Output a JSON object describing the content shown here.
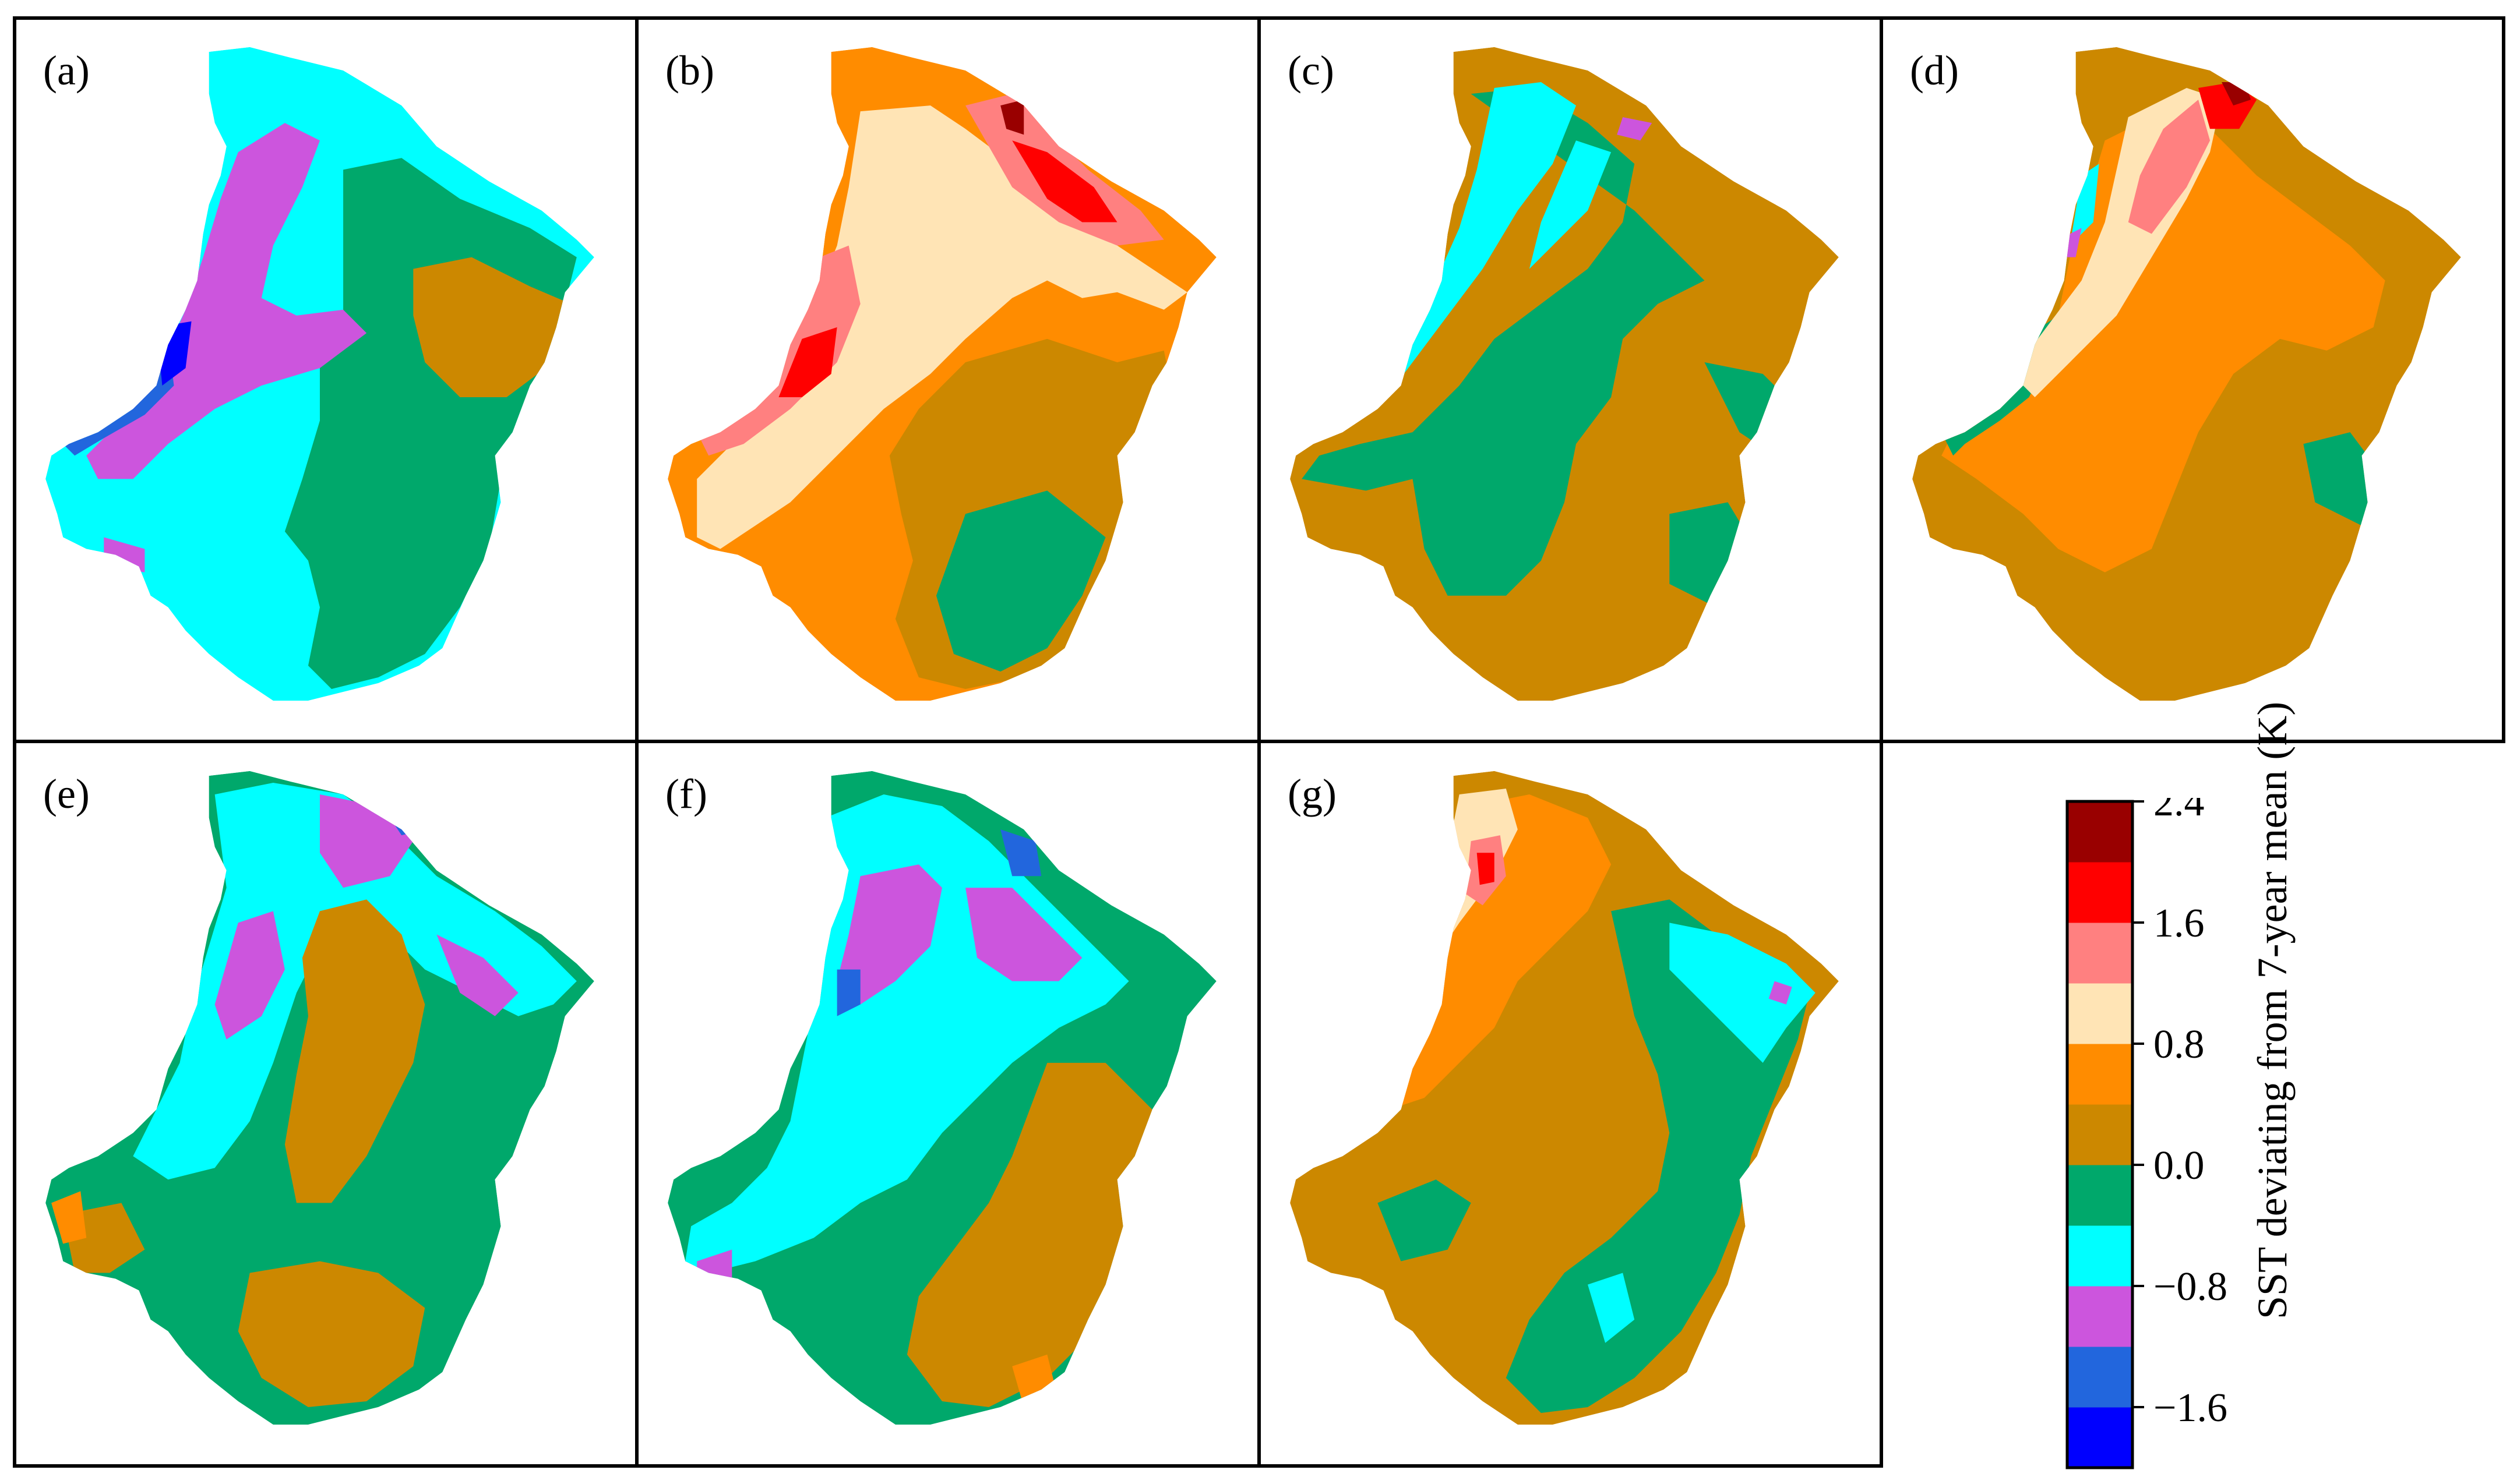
{
  "chart_data": {
    "type": "heatmap",
    "panels": [
      {
        "label": "(a)",
        "regions": [
          "dark-blue",
          "blue",
          "magenta",
          "cyan",
          "green",
          "brown"
        ]
      },
      {
        "label": "(b)",
        "regions": [
          "green",
          "brown",
          "orange",
          "light-orange",
          "light-red",
          "red",
          "dark-red"
        ]
      },
      {
        "label": "(c)",
        "regions": [
          "magenta",
          "cyan",
          "green",
          "brown"
        ]
      },
      {
        "label": "(d)",
        "regions": [
          "cyan",
          "magenta",
          "green",
          "brown",
          "orange",
          "light-orange",
          "light-red",
          "red",
          "dark-red"
        ]
      },
      {
        "label": "(e)",
        "regions": [
          "blue",
          "magenta",
          "cyan",
          "green",
          "brown",
          "orange"
        ]
      },
      {
        "label": "(f)",
        "regions": [
          "blue",
          "magenta",
          "cyan",
          "green",
          "brown",
          "orange"
        ]
      },
      {
        "label": "(g)",
        "regions": [
          "magenta",
          "cyan",
          "green",
          "brown",
          "orange",
          "light-orange",
          "light-red",
          "red"
        ]
      }
    ],
    "colorbar": {
      "label": "SST deviating from 7-year mean (K)",
      "ticks": [
        "2.4",
        "1.6",
        "0.8",
        "0.0",
        "−0.8",
        "−1.6"
      ],
      "range": [
        -2.0,
        2.4
      ],
      "levels": [
        -2.0,
        -1.6,
        -1.2,
        -0.8,
        -0.4,
        0.0,
        0.4,
        0.8,
        1.2,
        1.6,
        2.0,
        2.4
      ],
      "colors": [
        "#0000ff",
        "#2266dd",
        "#cc55dd",
        "#00ffff",
        "#00a86b",
        "#cc8800",
        "#ff8c00",
        "#ffe4b5",
        "#ff8080",
        "#ff0000",
        "#990000"
      ]
    }
  }
}
